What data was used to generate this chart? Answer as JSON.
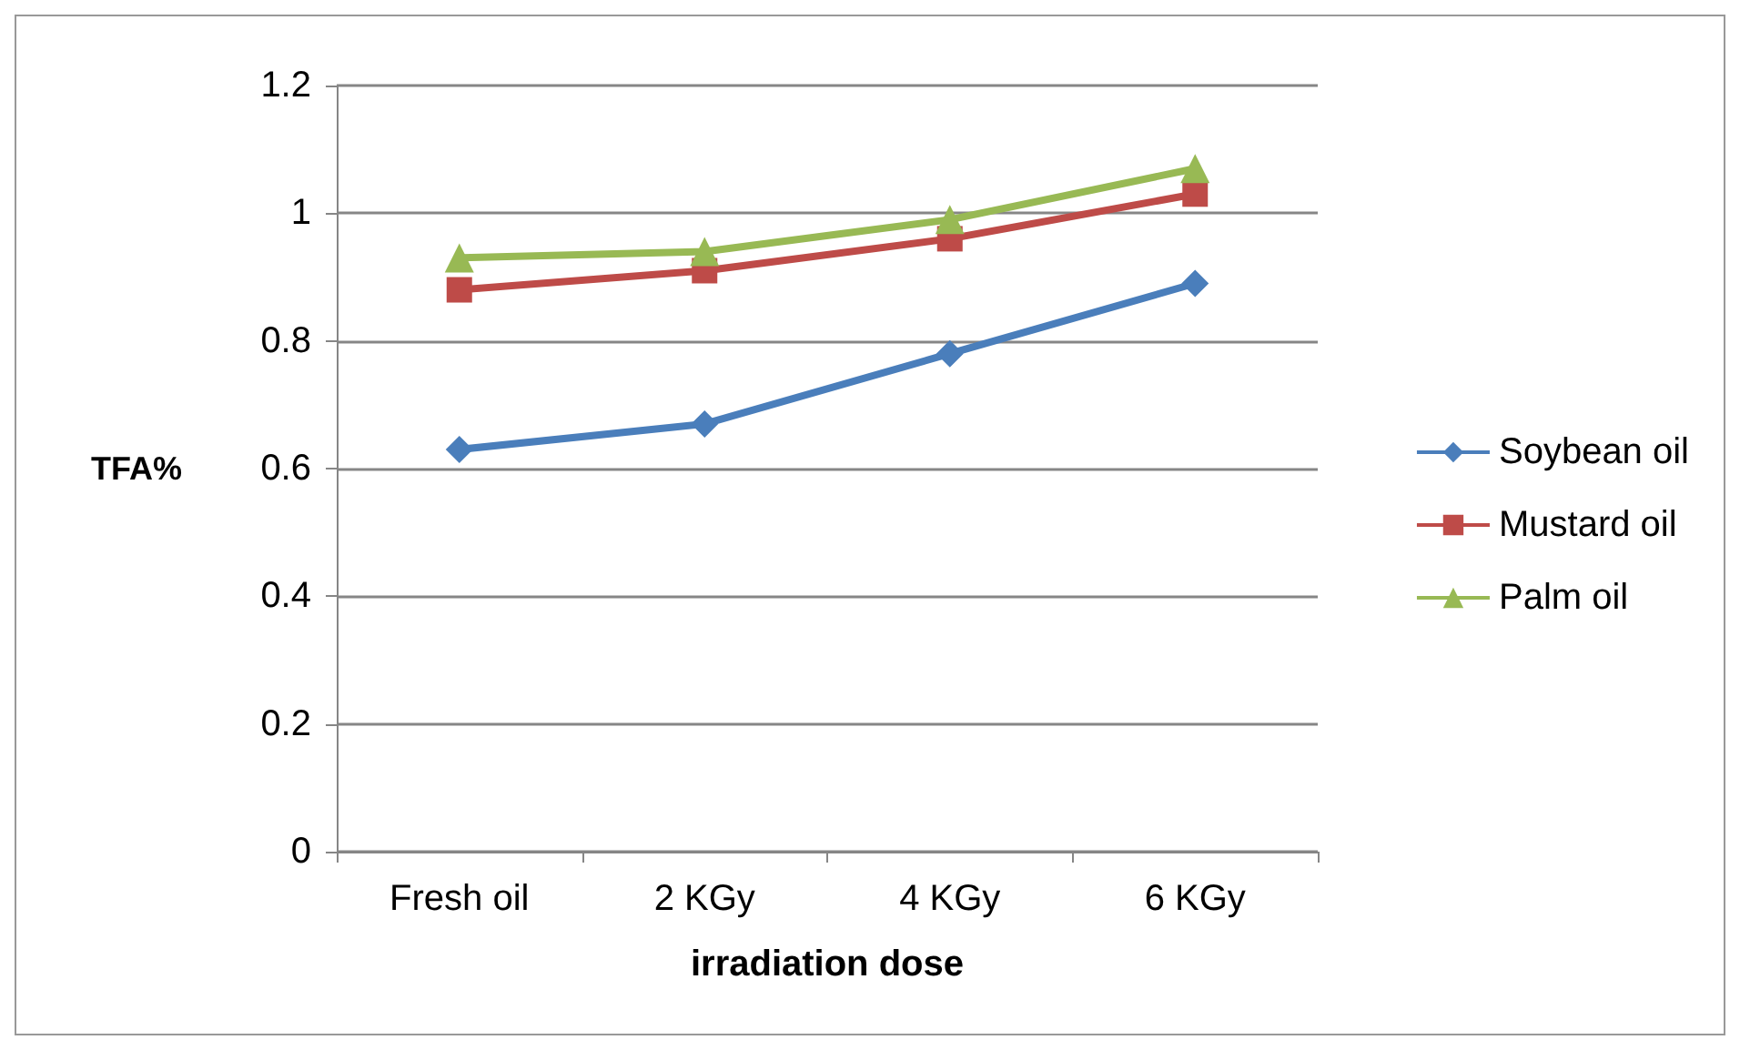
{
  "chart_data": {
    "type": "line",
    "xlabel": "irradiation dose",
    "ylabel": "TFA%",
    "categories": [
      "Fresh oil",
      "2 KGy",
      "4 KGy",
      "6 KGy"
    ],
    "series": [
      {
        "name": "Soybean oil",
        "color": "#4a7ebb",
        "marker": "diamond",
        "values": [
          0.63,
          0.67,
          0.78,
          0.89
        ]
      },
      {
        "name": "Mustard oil",
        "color": "#be4b48",
        "marker": "square",
        "values": [
          0.88,
          0.91,
          0.96,
          1.03
        ]
      },
      {
        "name": "Palm oil",
        "color": "#98b954",
        "marker": "triangle",
        "values": [
          0.93,
          0.94,
          0.99,
          1.07
        ]
      }
    ],
    "ylim": [
      0,
      1.2
    ],
    "yticks": [
      0,
      0.2,
      0.4,
      0.6,
      0.8,
      1,
      1.2
    ],
    "grid": "y",
    "legend": "right"
  }
}
